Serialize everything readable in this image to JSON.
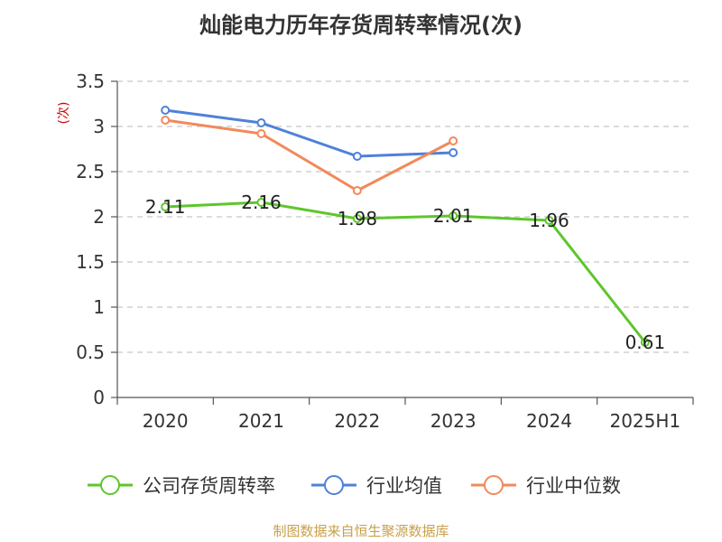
{
  "chart_data": {
    "type": "line",
    "title": "灿能电力历年存货周转率情况(次)",
    "ylabel": "(次)",
    "xlabel": "",
    "categories": [
      "2020",
      "2021",
      "2022",
      "2023",
      "2024",
      "2025H1"
    ],
    "ylim": [
      0,
      3.5
    ],
    "yticks": [
      "0",
      "0.5",
      "1",
      "1.5",
      "2",
      "2.5",
      "3",
      "3.5"
    ],
    "grid": true,
    "legend_position": "bottom",
    "series": [
      {
        "name": "公司存货周转率",
        "color": "#5ec62b",
        "values": [
          2.11,
          2.16,
          1.98,
          2.01,
          1.96,
          0.61
        ],
        "labels": [
          "2.11",
          "2.16",
          "1.98",
          "2.01",
          "1.96",
          "0.61"
        ]
      },
      {
        "name": "行业均值",
        "color": "#4f81d9",
        "values": [
          3.18,
          3.04,
          2.67,
          2.71,
          null,
          null
        ]
      },
      {
        "name": "行业中位数",
        "color": "#f2895a",
        "values": [
          3.07,
          2.92,
          2.29,
          2.84,
          null,
          null
        ]
      }
    ]
  },
  "footer": {
    "source": "制图数据来自恒生聚源数据库"
  }
}
